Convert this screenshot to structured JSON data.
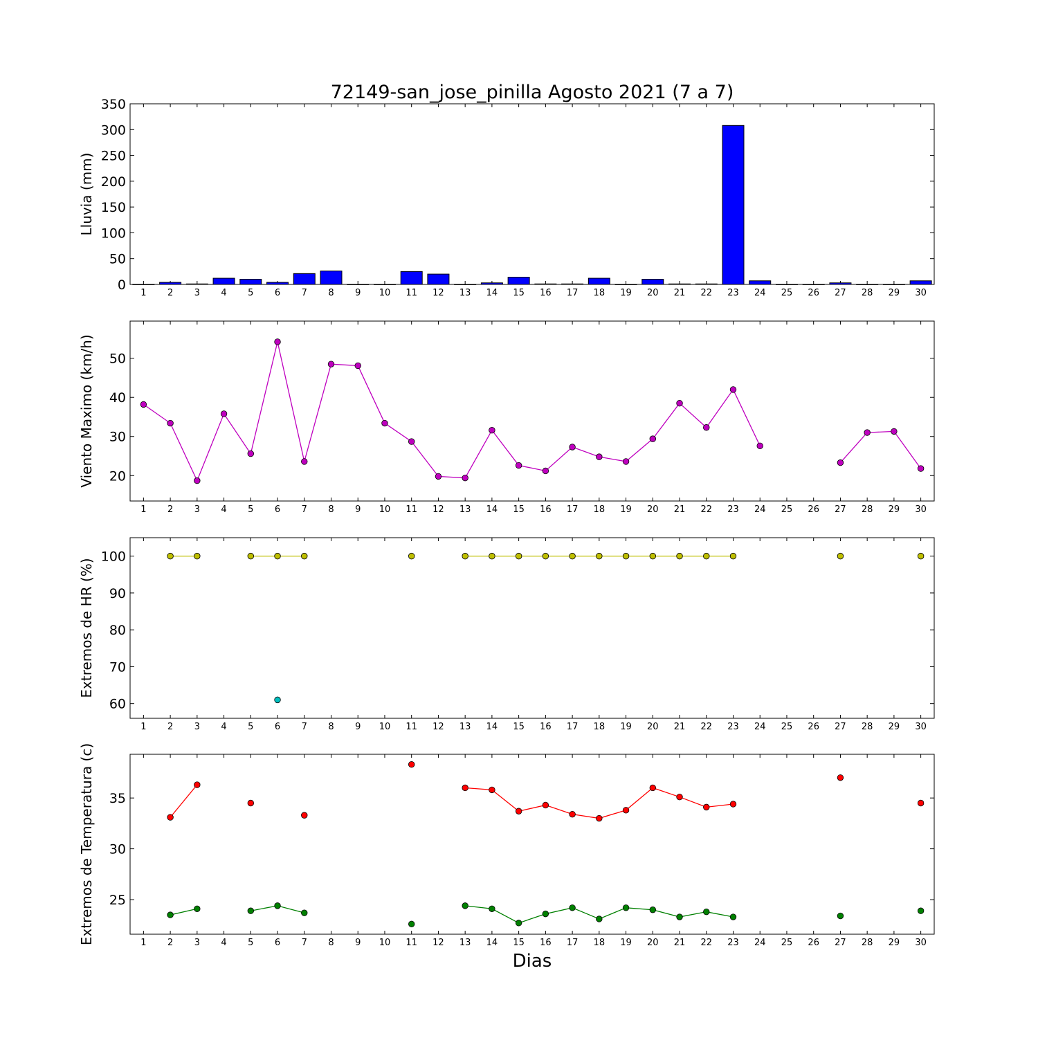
{
  "title": "72149-san_jose_pinilla Agosto 2021  (7 a 7)",
  "xlabel": "Dias",
  "colors": {
    "bar_fill": "#0000ff",
    "wind": "#bf00bf",
    "hr_max": "#bfbf00",
    "hr_min": "#00bfbf",
    "t_max": "#ff0000",
    "t_min": "#008000"
  },
  "chart_data": [
    {
      "id": "rain",
      "type": "bar",
      "ylabel": "Lluvia (mm)",
      "categories": [
        1,
        2,
        3,
        4,
        5,
        6,
        7,
        8,
        9,
        10,
        11,
        12,
        13,
        14,
        15,
        16,
        17,
        18,
        19,
        20,
        21,
        22,
        23,
        24,
        25,
        26,
        27,
        28,
        29,
        30
      ],
      "values": [
        0,
        4,
        1,
        12,
        10,
        4,
        21,
        26,
        0,
        0,
        25,
        20,
        0,
        3,
        14,
        1,
        1,
        12,
        0,
        10,
        1,
        1,
        308,
        7,
        0,
        0,
        3,
        0,
        0,
        7
      ],
      "ylim": [
        0,
        350
      ],
      "yticks": [
        0,
        50,
        100,
        150,
        200,
        250,
        300,
        350
      ],
      "grid": false
    },
    {
      "id": "wind",
      "type": "line",
      "ylabel": "Viento Maximo (km/h)",
      "x": [
        1,
        2,
        3,
        4,
        5,
        6,
        7,
        8,
        9,
        10,
        11,
        12,
        13,
        14,
        15,
        16,
        17,
        18,
        19,
        20,
        21,
        22,
        23,
        24,
        25,
        26,
        27,
        28,
        29,
        30
      ],
      "series": [
        {
          "values": [
            38.2,
            33.4,
            18.7,
            35.8,
            25.6,
            54.2,
            23.6,
            48.5,
            48.1,
            33.4,
            28.7,
            19.8,
            19.4,
            31.6,
            22.6,
            21.2,
            27.3,
            24.8,
            23.6,
            29.4,
            38.5,
            32.3,
            42.0,
            27.6,
            null,
            null,
            23.3,
            31.0,
            31.3,
            21.8
          ]
        }
      ],
      "ylim": [
        13.5,
        59.5
      ],
      "yticks": [
        20,
        30,
        40,
        50
      ],
      "grid": false
    },
    {
      "id": "hr",
      "type": "line",
      "ylabel": "Extremos de HR (%)",
      "x": [
        1,
        2,
        3,
        4,
        5,
        6,
        7,
        8,
        9,
        10,
        11,
        12,
        13,
        14,
        15,
        16,
        17,
        18,
        19,
        20,
        21,
        22,
        23,
        24,
        25,
        26,
        27,
        28,
        29,
        30
      ],
      "series": [
        {
          "values": [
            null,
            100,
            100,
            null,
            100,
            100,
            100,
            null,
            null,
            null,
            100,
            null,
            100,
            100,
            100,
            100,
            100,
            100,
            100,
            100,
            100,
            100,
            100,
            null,
            null,
            null,
            100,
            null,
            null,
            100
          ]
        },
        {
          "values": [
            null,
            null,
            null,
            null,
            null,
            61,
            null,
            null,
            null,
            null,
            null,
            null,
            null,
            null,
            null,
            null,
            null,
            null,
            null,
            null,
            null,
            null,
            null,
            null,
            null,
            null,
            null,
            null,
            null,
            null
          ]
        }
      ],
      "ylim": [
        56,
        105
      ],
      "yticks": [
        60,
        70,
        80,
        90,
        100
      ],
      "grid": false
    },
    {
      "id": "temp",
      "type": "line",
      "ylabel": "Extremos de Temperatura (c)",
      "x": [
        1,
        2,
        3,
        4,
        5,
        6,
        7,
        8,
        9,
        10,
        11,
        12,
        13,
        14,
        15,
        16,
        17,
        18,
        19,
        20,
        21,
        22,
        23,
        24,
        25,
        26,
        27,
        28,
        29,
        30
      ],
      "series": [
        {
          "values": [
            null,
            33.1,
            36.3,
            null,
            34.5,
            null,
            33.3,
            null,
            null,
            null,
            38.3,
            null,
            36.0,
            35.8,
            33.7,
            34.3,
            33.4,
            33.0,
            33.8,
            36.0,
            35.1,
            34.1,
            34.4,
            null,
            null,
            null,
            37.0,
            null,
            null,
            34.5
          ]
        },
        {
          "values": [
            null,
            23.5,
            24.1,
            null,
            23.9,
            24.4,
            23.7,
            null,
            null,
            null,
            22.6,
            null,
            24.4,
            24.1,
            22.7,
            23.6,
            24.2,
            23.1,
            24.2,
            24.0,
            23.3,
            23.8,
            23.3,
            null,
            null,
            null,
            23.4,
            null,
            null,
            23.9
          ]
        }
      ],
      "ylim": [
        21.6,
        39.3
      ],
      "yticks": [
        25,
        30,
        35
      ],
      "grid": false
    }
  ]
}
